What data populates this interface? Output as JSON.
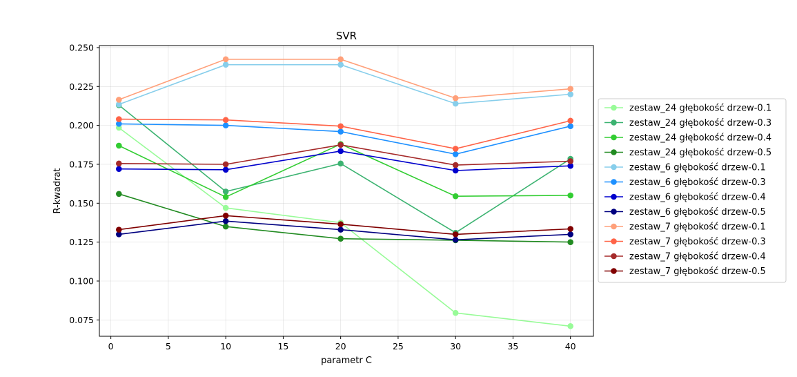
{
  "chart_data": {
    "type": "line",
    "title": "SVR",
    "xlabel": "parametr C",
    "ylabel": "R-kwadrat",
    "xlim": [
      -1,
      42
    ],
    "ylim": [
      0.0645,
      0.2513
    ],
    "xticks": [
      0,
      5,
      10,
      15,
      20,
      25,
      30,
      35,
      40
    ],
    "yticks": [
      0.075,
      0.1,
      0.125,
      0.15,
      0.175,
      0.2,
      0.225,
      0.25
    ],
    "ytick_labels": [
      "0.075",
      "0.100",
      "0.125",
      "0.150",
      "0.175",
      "0.200",
      "0.225",
      "0.250"
    ],
    "grid": true,
    "legend_position": "outside-right",
    "x": [
      0.7,
      10,
      20,
      30,
      40
    ],
    "series": [
      {
        "name": "zestaw_24 głębokość drzew-0.1",
        "color": "#98fb98",
        "values": [
          0.1985,
          0.147,
          0.1375,
          0.0795,
          0.071
        ]
      },
      {
        "name": "zestaw_24 głębokość drzew-0.3",
        "color": "#3cb371",
        "values": [
          0.213,
          0.1575,
          0.1755,
          0.131,
          0.1785
        ]
      },
      {
        "name": "zestaw_24 głębokość drzew-0.4",
        "color": "#32cd32",
        "values": [
          0.187,
          0.154,
          0.188,
          0.1545,
          0.155
        ]
      },
      {
        "name": "zestaw_24 głębokość drzew-0.5",
        "color": "#228b22",
        "values": [
          0.156,
          0.135,
          0.1272,
          0.1262,
          0.125
        ]
      },
      {
        "name": "zestaw_6 głębokość drzew-0.1",
        "color": "#87ceeb",
        "values": [
          0.2135,
          0.239,
          0.239,
          0.214,
          0.22
        ]
      },
      {
        "name": "zestaw_6 głębokość drzew-0.3",
        "color": "#1e90ff",
        "values": [
          0.201,
          0.2,
          0.196,
          0.1815,
          0.1995
        ]
      },
      {
        "name": "zestaw_6 głębokość drzew-0.4",
        "color": "#0000cd",
        "values": [
          0.172,
          0.1715,
          0.1835,
          0.171,
          0.174
        ]
      },
      {
        "name": "zestaw_6 głębokość drzew-0.5",
        "color": "#000080",
        "values": [
          0.13,
          0.1385,
          0.133,
          0.1265,
          0.13
        ]
      },
      {
        "name": "zestaw_7 głębokość drzew-0.1",
        "color": "#ffa07a",
        "values": [
          0.2165,
          0.2425,
          0.2425,
          0.2175,
          0.2235
        ]
      },
      {
        "name": "zestaw_7 głębokość drzew-0.3",
        "color": "#ff6347",
        "values": [
          0.204,
          0.2035,
          0.1995,
          0.185,
          0.203
        ]
      },
      {
        "name": "zestaw_7 głębokość drzew-0.4",
        "color": "#a52a2a",
        "values": [
          0.1755,
          0.175,
          0.1875,
          0.1745,
          0.177
        ]
      },
      {
        "name": "zestaw_7 głębokość drzew-0.5",
        "color": "#800000",
        "values": [
          0.133,
          0.142,
          0.1365,
          0.13,
          0.1335
        ]
      }
    ]
  }
}
